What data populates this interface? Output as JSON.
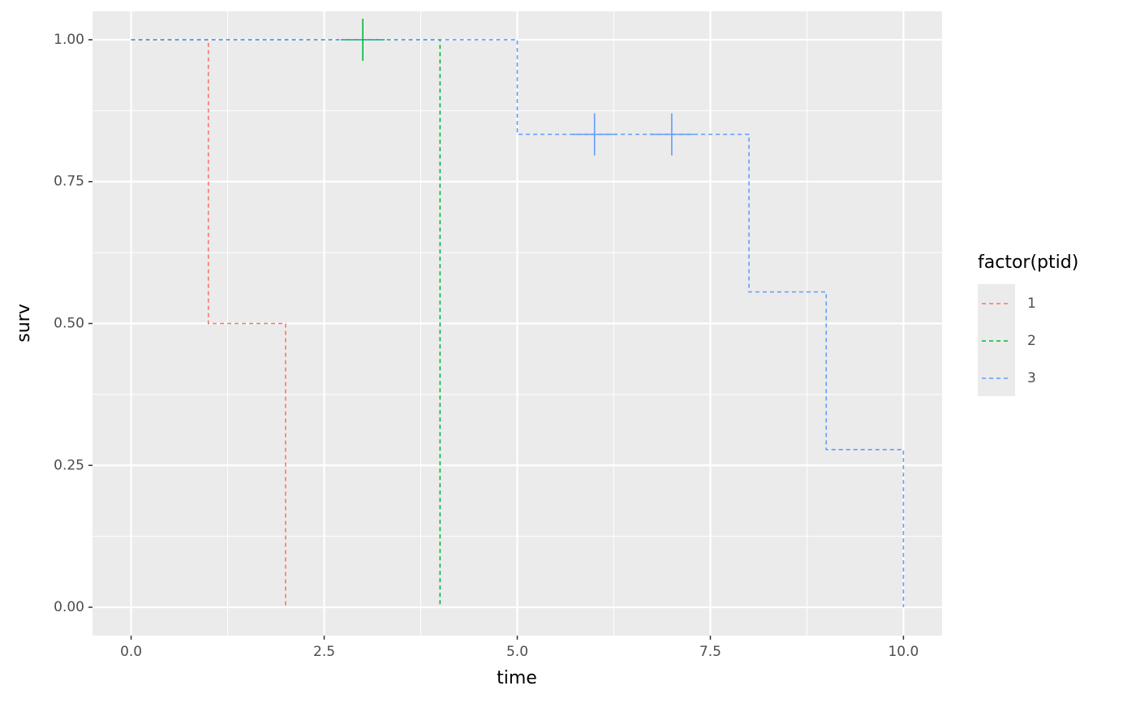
{
  "chart_data": {
    "type": "step",
    "x_label": "time",
    "y_label": "surv",
    "legend_title": "factor(ptid)",
    "legend_position": "right",
    "xlim": [
      -0.5,
      10.5
    ],
    "ylim": [
      -0.05,
      1.05
    ],
    "xticks": [
      {
        "value": 0,
        "label": "0.0"
      },
      {
        "value": 2.5,
        "label": "2.5"
      },
      {
        "value": 5,
        "label": "5.0"
      },
      {
        "value": 7.5,
        "label": "7.5"
      },
      {
        "value": 10,
        "label": "10.0"
      }
    ],
    "yticks": [
      {
        "value": 0,
        "label": "0.00"
      },
      {
        "value": 0.25,
        "label": "0.25"
      },
      {
        "value": 0.5,
        "label": "0.50"
      },
      {
        "value": 0.75,
        "label": "0.75"
      },
      {
        "value": 1,
        "label": "1.00"
      }
    ],
    "grid": true,
    "series": [
      {
        "name": "1",
        "color": "#F8766D",
        "x": [
          0,
          1,
          2
        ],
        "values": [
          1,
          0.5,
          0
        ],
        "censored": {
          "x": [],
          "values": []
        }
      },
      {
        "name": "2",
        "color": "#00BA38",
        "x": [
          0,
          4
        ],
        "values": [
          1,
          0
        ],
        "censored": {
          "x": [
            3
          ],
          "values": [
            1
          ]
        }
      },
      {
        "name": "3",
        "color": "#619CFF",
        "x": [
          0,
          5,
          8,
          9,
          10
        ],
        "values": [
          1,
          0.8333,
          0.5556,
          0.2778,
          0
        ],
        "censored": {
          "x": [
            6,
            7
          ],
          "values": [
            0.8333,
            0.8333
          ]
        }
      }
    ]
  }
}
